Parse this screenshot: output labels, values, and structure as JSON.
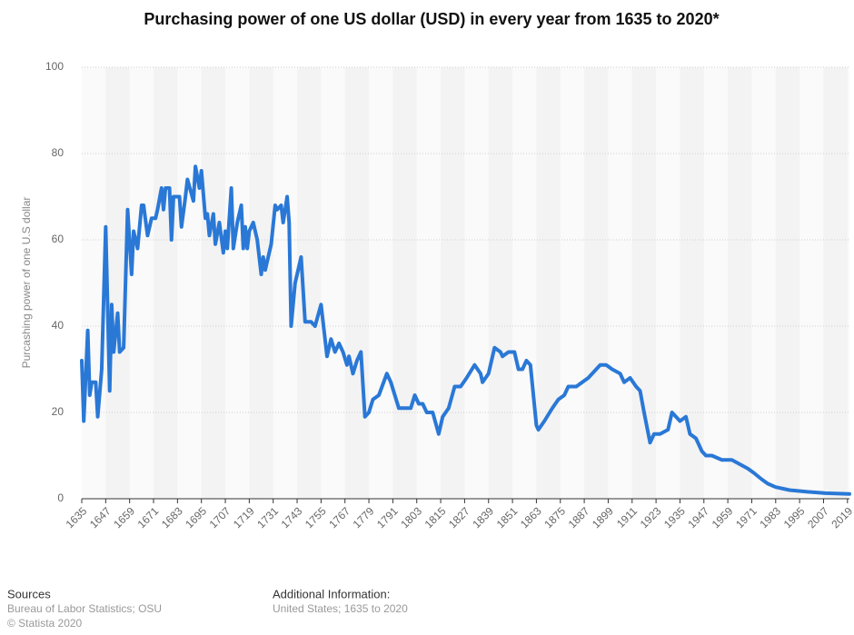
{
  "chart_data": {
    "type": "line",
    "title": "Purchasing power of one US dollar (USD) in every year from 1635 to 2020*",
    "y_label": "Purcashing power of one U.S dollar",
    "x": [
      1635,
      1636,
      1638,
      1639,
      1640,
      1642,
      1643,
      1645,
      1647,
      1649,
      1650,
      1651,
      1653,
      1654,
      1656,
      1658,
      1660,
      1661,
      1663,
      1665,
      1666,
      1668,
      1670,
      1672,
      1673,
      1675,
      1676,
      1677,
      1679,
      1680,
      1681,
      1684,
      1685,
      1687,
      1688,
      1691,
      1692,
      1694,
      1695,
      1697,
      1698,
      1699,
      1701,
      1702,
      1704,
      1706,
      1707,
      1708,
      1710,
      1711,
      1713,
      1715,
      1716,
      1717,
      1718,
      1719,
      1721,
      1723,
      1725,
      1726,
      1727,
      1730,
      1732,
      1733,
      1735,
      1736,
      1738,
      1739,
      1740,
      1742,
      1745,
      1747,
      1750,
      1752,
      1755,
      1758,
      1760,
      1762,
      1764,
      1766,
      1768,
      1769,
      1771,
      1773,
      1775,
      1777,
      1779,
      1781,
      1784,
      1788,
      1790,
      1794,
      1797,
      1800,
      1802,
      1804,
      1806,
      1808,
      1811,
      1814,
      1816,
      1819,
      1822,
      1825,
      1828,
      1832,
      1835,
      1836,
      1839,
      1842,
      1845,
      1846,
      1849,
      1852,
      1854,
      1856,
      1858,
      1860,
      1863,
      1864,
      1867,
      1871,
      1874,
      1877,
      1879,
      1883,
      1886,
      1889,
      1891,
      1895,
      1898,
      1901,
      1905,
      1907,
      1910,
      1913,
      1915,
      1917,
      1920,
      1922,
      1925,
      1929,
      1931,
      1935,
      1938,
      1940,
      1943,
      1946,
      1948,
      1951,
      1956,
      1961,
      1965,
      1969,
      1972,
      1976,
      1979,
      1983,
      1990,
      1999,
      2008,
      2020
    ],
    "series": [
      {
        "name": "Purchasing power",
        "color": "#2a78d6",
        "values": [
          32,
          18,
          39,
          24,
          27,
          27,
          19,
          30,
          63,
          25,
          45,
          34,
          43,
          34,
          35,
          67,
          52,
          62,
          58,
          68,
          68,
          61,
          65,
          65,
          67,
          72,
          67,
          72,
          72,
          60,
          70,
          70,
          63,
          70,
          74,
          69,
          77,
          72,
          76,
          65,
          66,
          61,
          66,
          59,
          64,
          57,
          62,
          58,
          72,
          58,
          64,
          68,
          58,
          63,
          58,
          62,
          64,
          60,
          52,
          56,
          53,
          59,
          68,
          67,
          68,
          64,
          70,
          64,
          40,
          50,
          56,
          41,
          41,
          40,
          45,
          33,
          37,
          34,
          36,
          34,
          31,
          33,
          29,
          32,
          34,
          19,
          20,
          23,
          24,
          29,
          27,
          21,
          21,
          21,
          24,
          22,
          22,
          20,
          20,
          15,
          19,
          21,
          26,
          26,
          28,
          31,
          29,
          27,
          29,
          35,
          34,
          33,
          34,
          34,
          30,
          30,
          32,
          31,
          17,
          16,
          18,
          21,
          23,
          24,
          26,
          26,
          27,
          28,
          29,
          31,
          31,
          30,
          29,
          27,
          28,
          26,
          25,
          20,
          13,
          15,
          15,
          16,
          20,
          18,
          19,
          15,
          14,
          11,
          10,
          10,
          9,
          9,
          8,
          7,
          6,
          4.5,
          3.5,
          2.7,
          2,
          1.6,
          1.3,
          1.1
        ]
      }
    ],
    "xlim": [
      1635,
      2020
    ],
    "xticks": [
      1635,
      1647,
      1659,
      1671,
      1683,
      1695,
      1707,
      1719,
      1731,
      1743,
      1755,
      1767,
      1779,
      1791,
      1803,
      1815,
      1827,
      1839,
      1851,
      1863,
      1875,
      1887,
      1899,
      1911,
      1923,
      1935,
      1947,
      1959,
      1971,
      1983,
      1995,
      2007,
      2019
    ],
    "ylim": [
      0,
      100
    ],
    "yticks": [
      0,
      20,
      40,
      60,
      80,
      100
    ],
    "grid": true
  },
  "footer": {
    "sources_title": "Sources",
    "sources": "Bureau of Labor Statistics; OSU",
    "copyright": "© Statista 2020",
    "info_title": "Additional Information:",
    "info": "United States; 1635 to 2020"
  }
}
